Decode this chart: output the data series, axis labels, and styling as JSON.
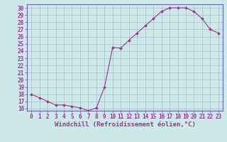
{
  "x": [
    0,
    1,
    2,
    3,
    4,
    5,
    6,
    7,
    8,
    9,
    10,
    11,
    12,
    13,
    14,
    15,
    16,
    17,
    18,
    19,
    20,
    21,
    22,
    23
  ],
  "y": [
    18,
    17.5,
    17,
    16.5,
    16.5,
    16.3,
    16.1,
    15.7,
    16.1,
    19.0,
    24.5,
    24.4,
    25.5,
    26.5,
    27.5,
    28.5,
    29.5,
    30.0,
    30.0,
    30.0,
    29.5,
    28.5,
    27.0,
    26.5
  ],
  "line_color": "#993399",
  "marker_color": "#993399",
  "bg_color": "#cce8e8",
  "grid_color": "#aabbcc",
  "xlabel": "Windchill (Refroidissement éolien,°C)",
  "ylim_min": 16,
  "ylim_max": 30.5,
  "yticks": [
    16,
    17,
    18,
    19,
    20,
    21,
    22,
    23,
    24,
    25,
    26,
    27,
    28,
    29,
    30
  ],
  "xticks": [
    0,
    1,
    2,
    3,
    4,
    5,
    6,
    7,
    8,
    9,
    10,
    11,
    12,
    13,
    14,
    15,
    16,
    17,
    18,
    19,
    20,
    21,
    22,
    23
  ],
  "tick_fontsize": 5.5,
  "label_fontsize": 6.5
}
